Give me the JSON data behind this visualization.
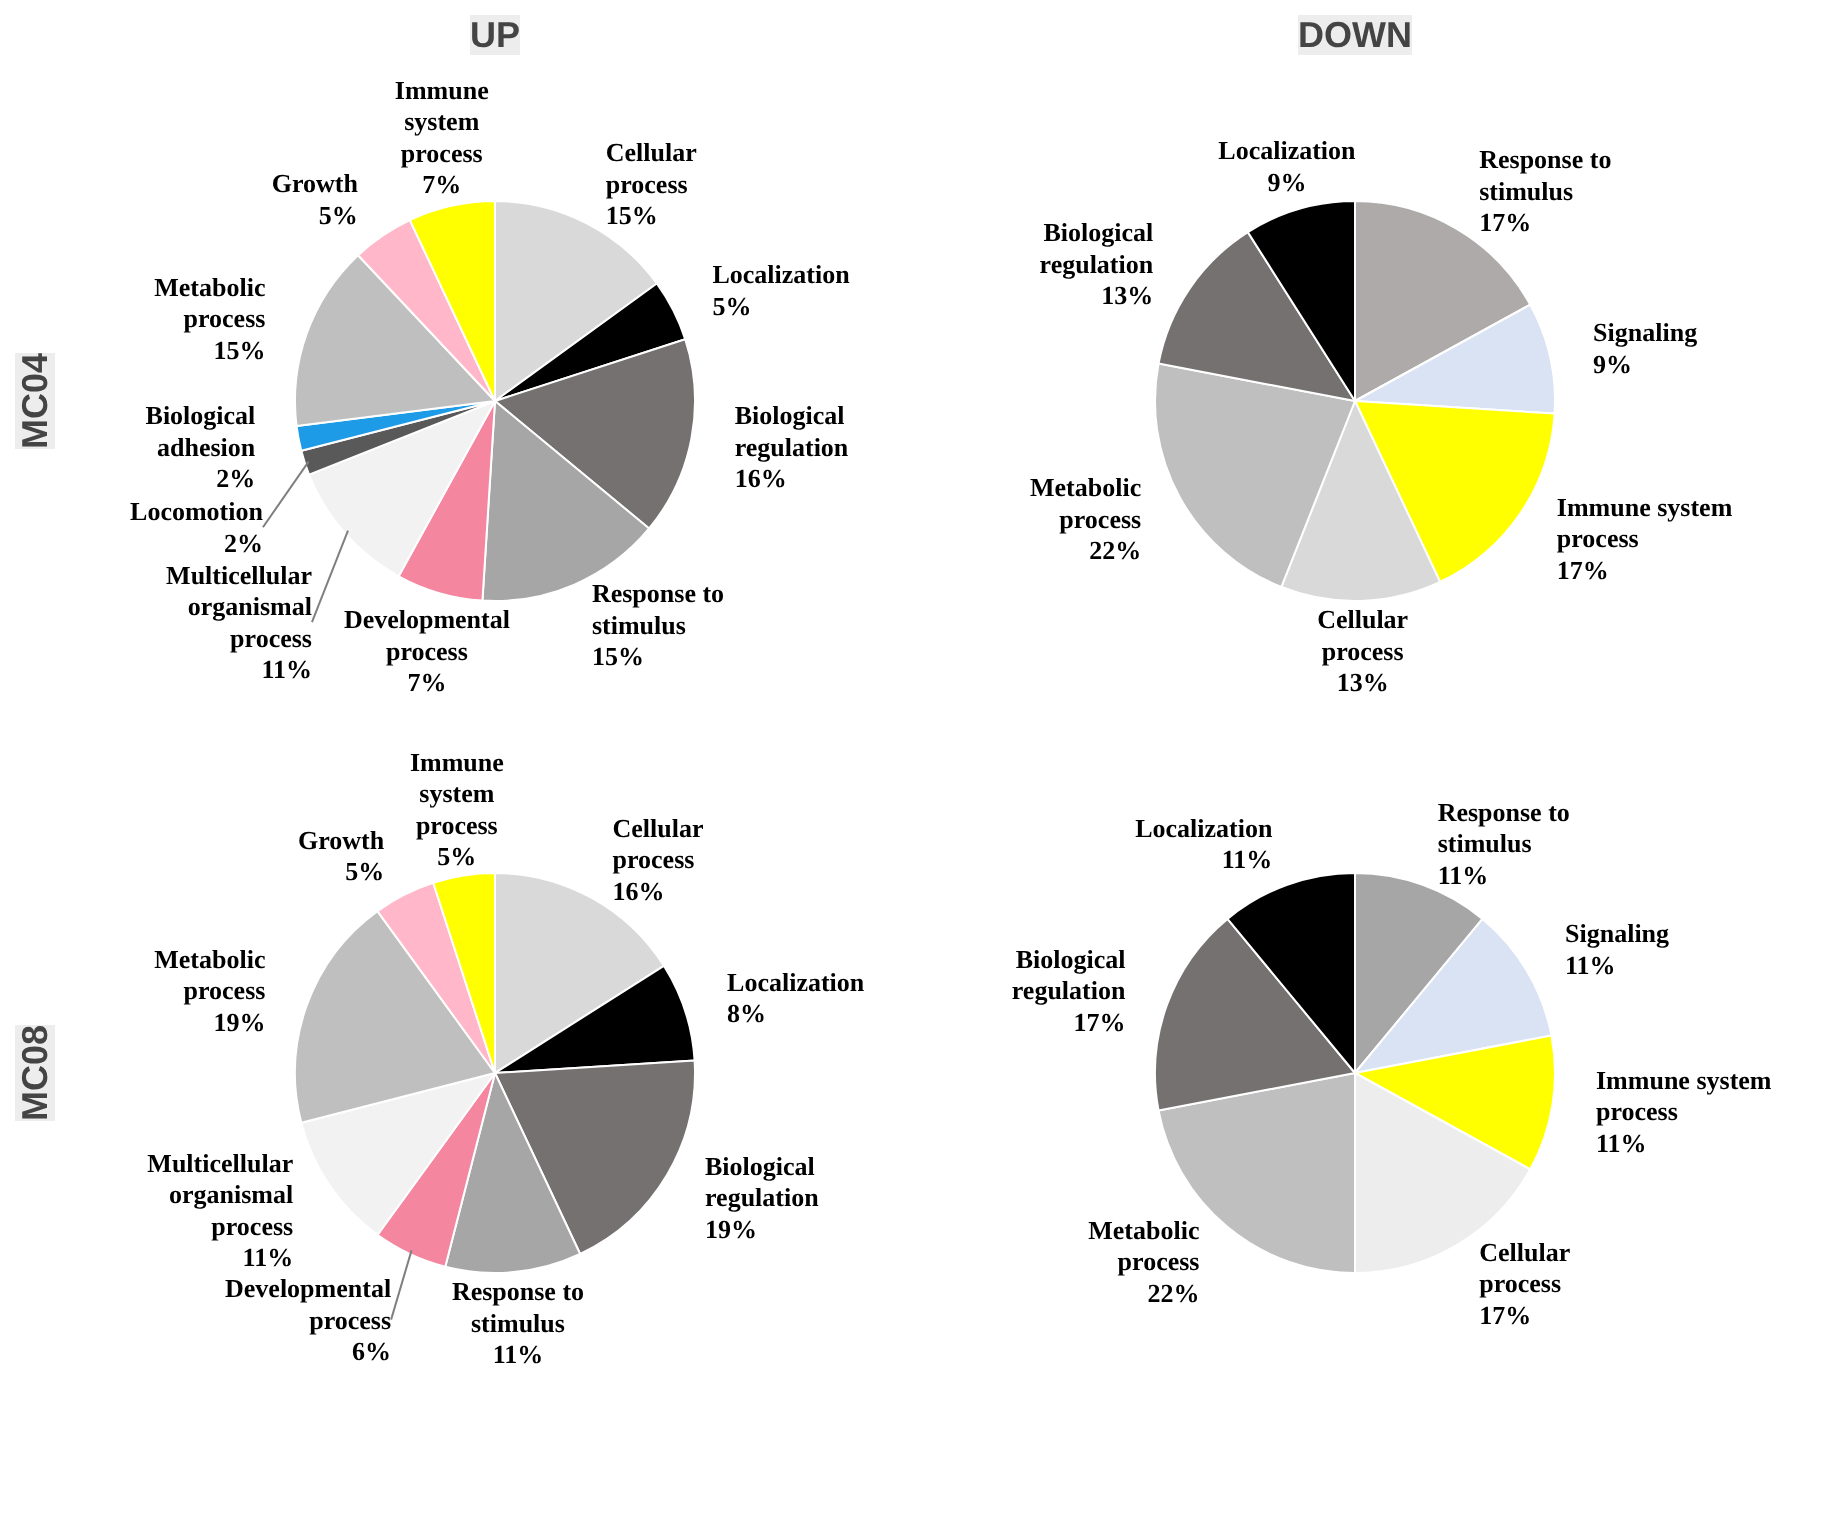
{
  "chart_data": [
    {
      "type": "pie",
      "title": "UP",
      "ylabel": "MC04",
      "categories": [
        "Cellular process",
        "Localization",
        "Biological regulation",
        "Response to stimulus",
        "Developmental process",
        "Multicellular organismal process",
        "Locomotion",
        "Biological adhesion",
        "Metabolic process",
        "Growth",
        "Immune system process"
      ],
      "values": [
        15,
        5,
        16,
        15,
        7,
        11,
        2,
        2,
        15,
        5,
        7
      ],
      "value_labels": [
        "15%",
        "5%",
        "16%",
        "15%",
        "7%",
        "11%",
        "2%",
        "2%",
        "15%",
        "5%",
        "7%"
      ],
      "colors": [
        "#d9d9d9",
        "#000000",
        "#767171",
        "#a6a6a6",
        "#f4869f",
        "#f2f2f2",
        "#595959",
        "#1e9be6",
        "#bfbfbf",
        "#ffb7c9",
        "#ffff00"
      ]
    },
    {
      "type": "pie",
      "title": "DOWN",
      "categories": [
        "Response to stimulus",
        "Signaling",
        "Immune system process",
        "Cellular process",
        "Metabolic process",
        "Biological regulation",
        "Localization"
      ],
      "values": [
        17,
        9,
        17,
        13,
        22,
        13,
        9
      ],
      "value_labels": [
        "17%",
        "9%",
        "17%",
        "13%",
        "22%",
        "13%",
        "9%"
      ],
      "colors": [
        "#aeaaaa",
        "#dae3f3",
        "#ffff00",
        "#d9d9d9",
        "#bfbfbf",
        "#767171",
        "#000000"
      ]
    },
    {
      "type": "pie",
      "ylabel": "MC08",
      "categories": [
        "Cellular process",
        "Localization",
        "Biological regulation",
        "Response to stimulus",
        "Developmental process",
        "Multicellular organismal process",
        "Metabolic process",
        "Growth",
        "Immune system process"
      ],
      "values": [
        16,
        8,
        19,
        11,
        6,
        11,
        19,
        5,
        5
      ],
      "value_labels": [
        "16%",
        "8%",
        "19%",
        "11%",
        "6%",
        "11%",
        "19%",
        "5%",
        "5%"
      ],
      "colors": [
        "#d9d9d9",
        "#000000",
        "#767171",
        "#a6a6a6",
        "#f4869f",
        "#f2f2f2",
        "#bfbfbf",
        "#ffb7c9",
        "#ffff00"
      ]
    },
    {
      "type": "pie",
      "categories": [
        "Response to stimulus",
        "Signaling",
        "Immune system process",
        "Cellular process",
        "Metabolic process",
        "Biological regulation",
        "Localization"
      ],
      "values": [
        11,
        11,
        11,
        17,
        22,
        17,
        11
      ],
      "value_labels": [
        "11%",
        "11%",
        "11%",
        "17%",
        "22%",
        "17%",
        "11%"
      ],
      "colors": [
        "#a6a6a6",
        "#dae3f3",
        "#ffff00",
        "#ededed",
        "#bfbfbf",
        "#767171",
        "#000000"
      ]
    }
  ]
}
